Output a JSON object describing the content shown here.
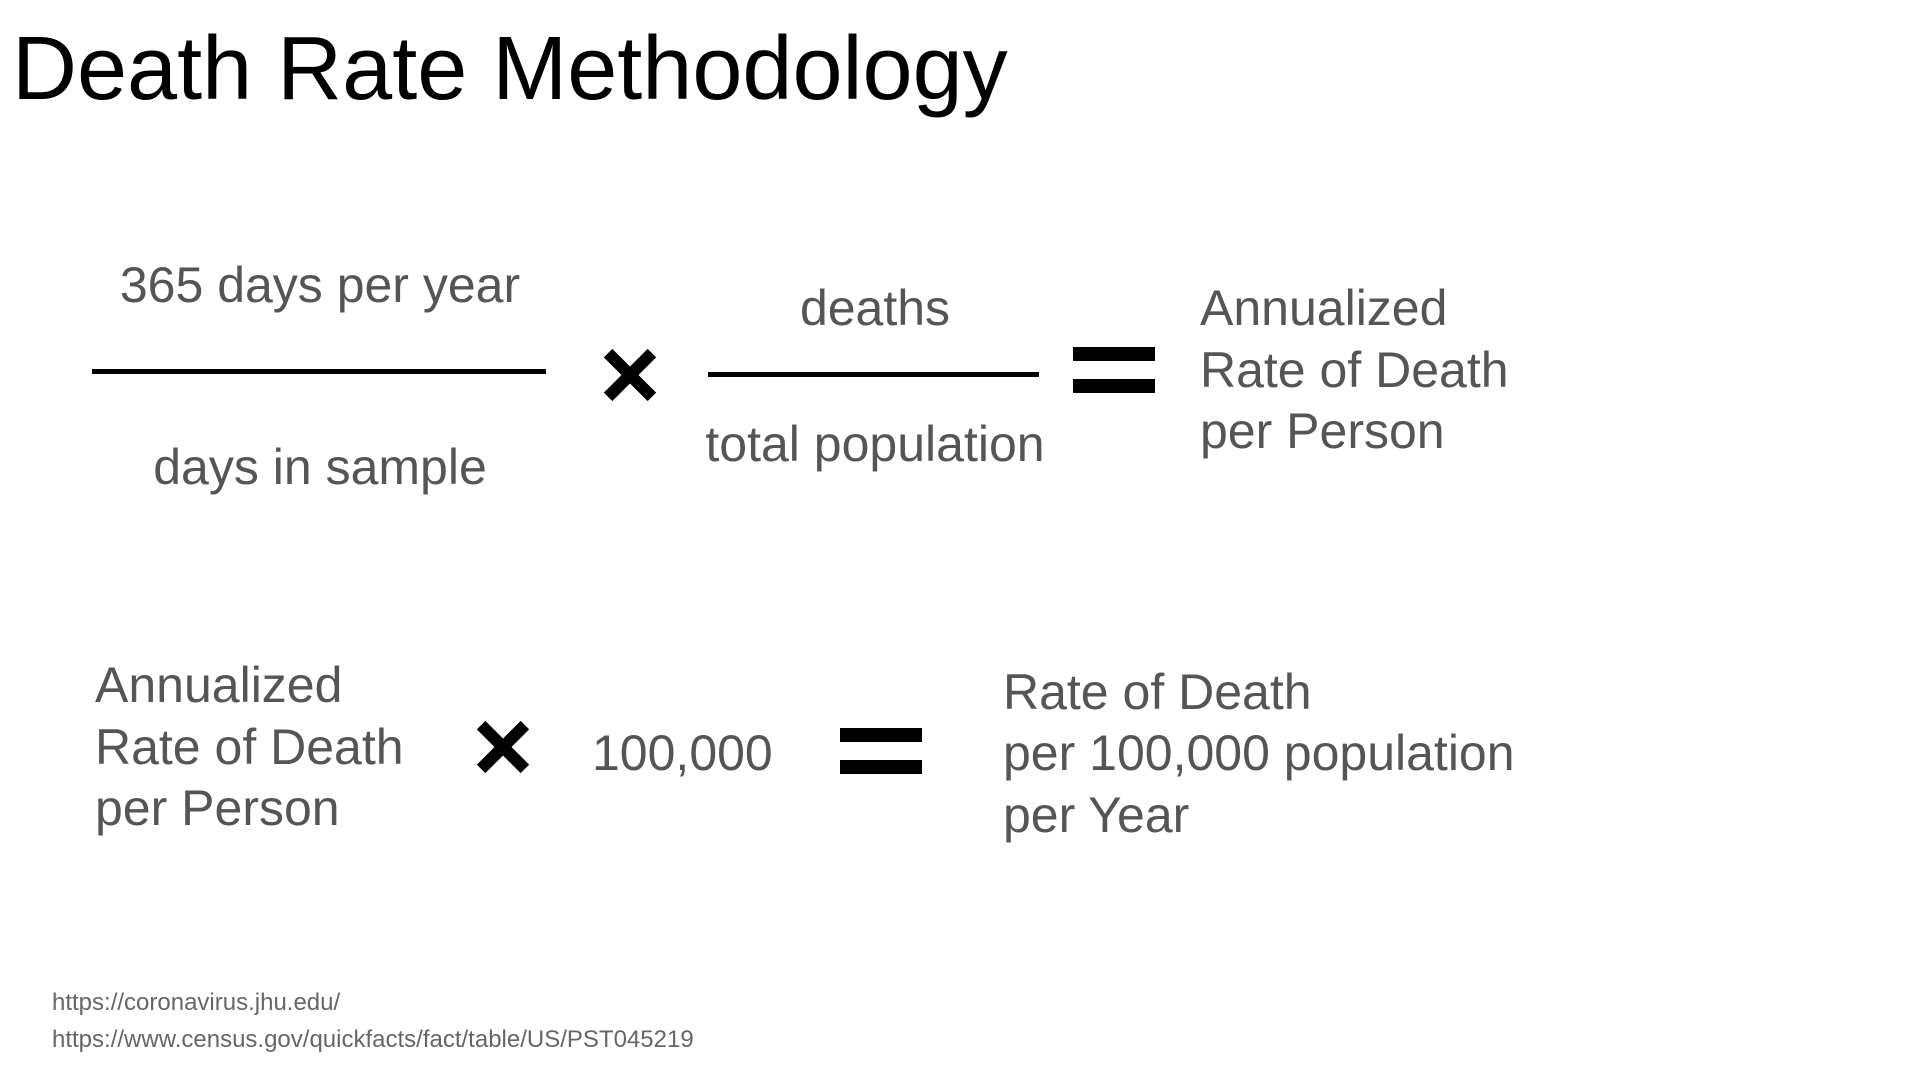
{
  "title": "Death Rate Methodology",
  "equation1": {
    "fraction1": {
      "numerator": "365 days per year",
      "denominator": "days in sample"
    },
    "fraction2": {
      "numerator": "deaths",
      "denominator": "total population"
    },
    "result": [
      "Annualized",
      "Rate of Death",
      "per Person"
    ]
  },
  "equation2": {
    "left": [
      "Annualized",
      "Rate of Death",
      "per Person"
    ],
    "multiplier": "100,000",
    "result": [
      "Rate of Death",
      "per 100,000 population",
      "per Year"
    ]
  },
  "sources": [
    "https://coronavirus.jhu.edu/",
    "https://www.census.gov/quickfacts/fact/table/US/PST045219"
  ],
  "operators": {
    "times": "×",
    "equals": "="
  }
}
